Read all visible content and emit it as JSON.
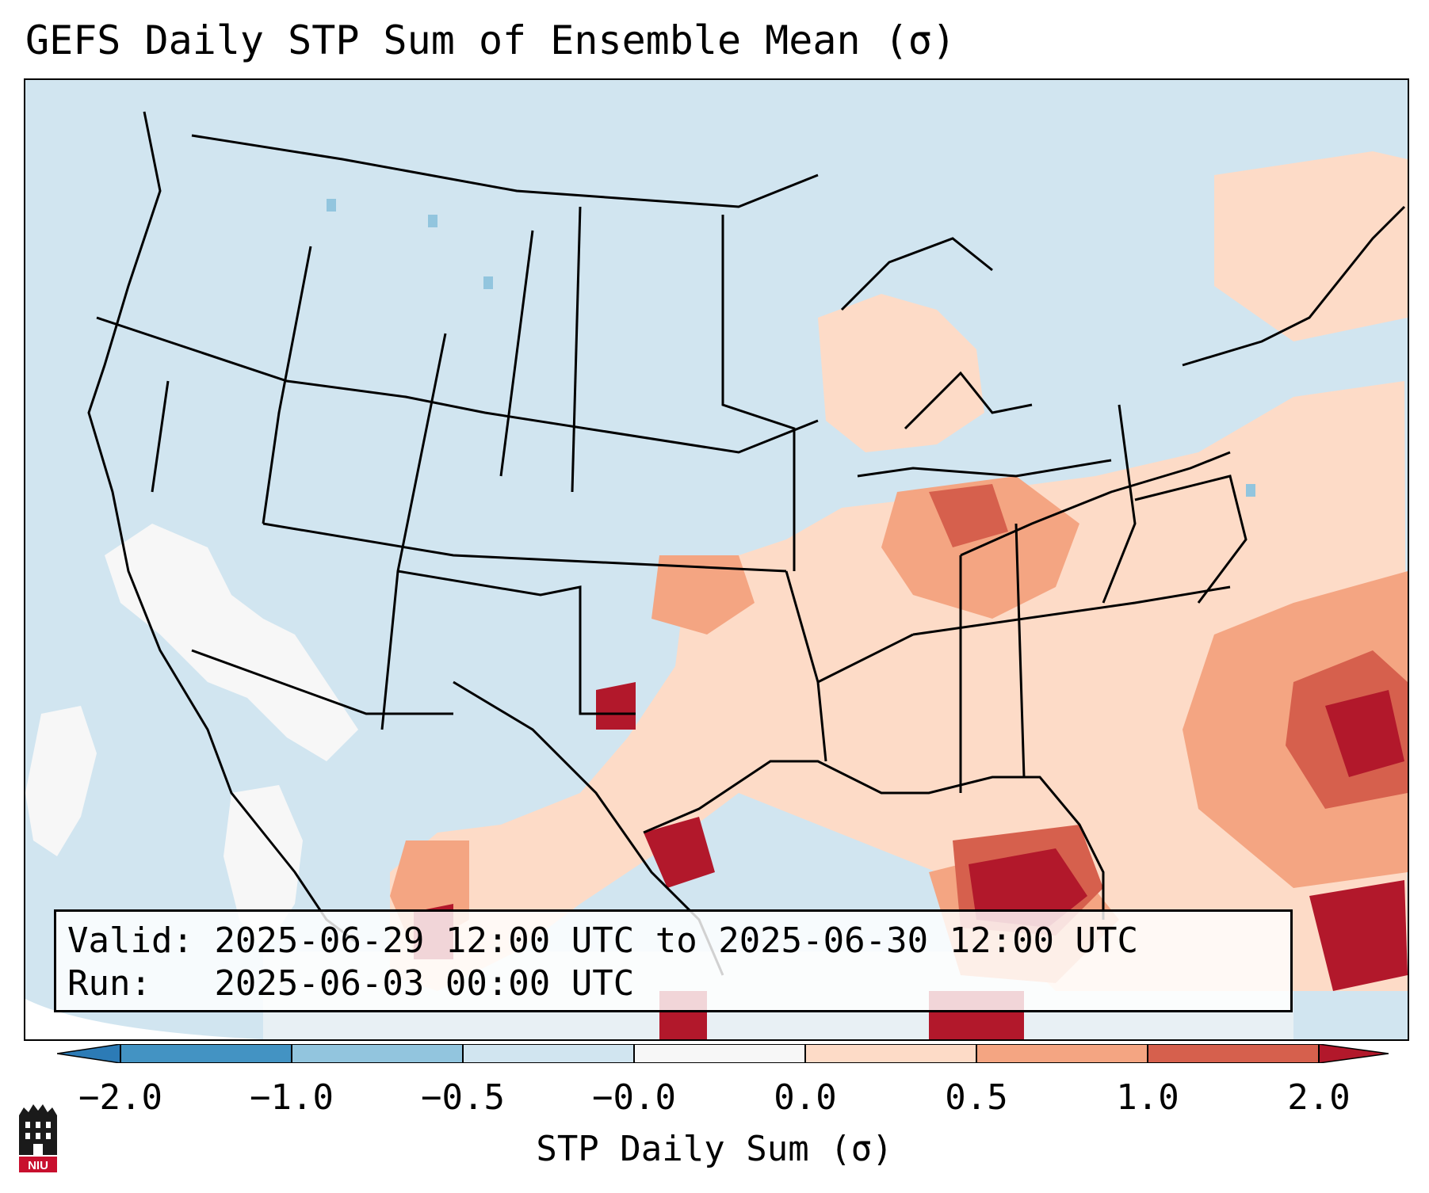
{
  "title": "GEFS Daily STP Sum of Ensemble Mean (σ)",
  "info": {
    "valid_prefix": "Valid: ",
    "valid_range": "2025-06-29 12:00 UTC to 2025-06-30 12:00 UTC",
    "run_prefix": "Run:   ",
    "run_time": "2025-06-03 00:00 UTC"
  },
  "colorbar": {
    "label": "STP Daily Sum (σ)",
    "ticks": [
      "−2.0",
      "−1.0",
      "−0.5",
      "−0.0",
      "0.0",
      "0.5",
      "1.0",
      "2.0"
    ],
    "colors": [
      "#2c7bb6",
      "#4393c3",
      "#92c5de",
      "#d1e5f0",
      "#f7f7f7",
      "#fddbc7",
      "#f4a582",
      "#d6604d",
      "#b2182b"
    ]
  },
  "map": {
    "background_color": "#d1e5f0",
    "projection_edge_color": "#ffffff",
    "state_line_color": "#000000"
  },
  "logo": {
    "text": "NIU"
  }
}
